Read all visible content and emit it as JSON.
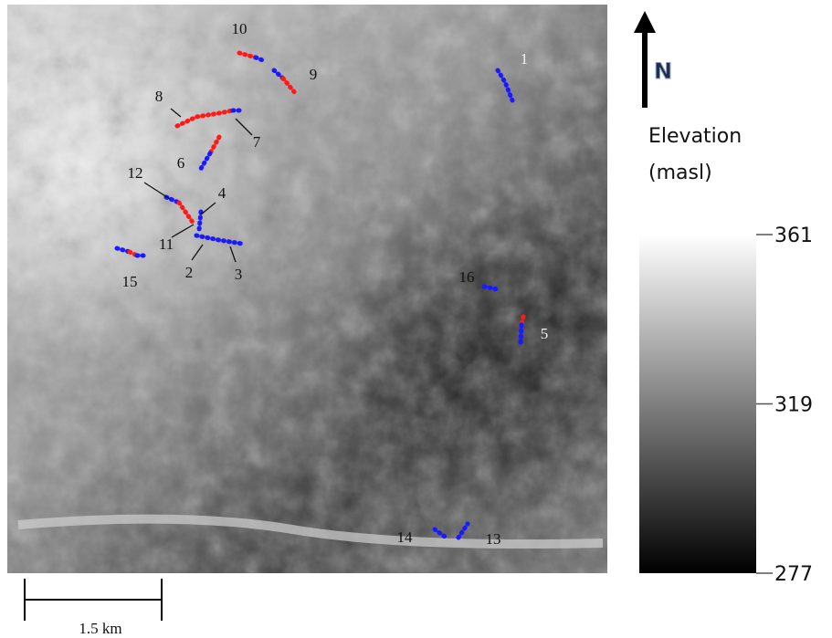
{
  "map": {
    "transect_labels": [
      "1",
      "2",
      "3",
      "4",
      "5",
      "6",
      "7",
      "8",
      "9",
      "10",
      "11",
      "12",
      "13",
      "14",
      "15",
      "16"
    ],
    "north": "N",
    "scale_bar": "1.5 km",
    "legend": {
      "title": [
        "Elevation",
        "(masl)"
      ],
      "ticks": [
        361,
        319,
        277
      ]
    }
  }
}
